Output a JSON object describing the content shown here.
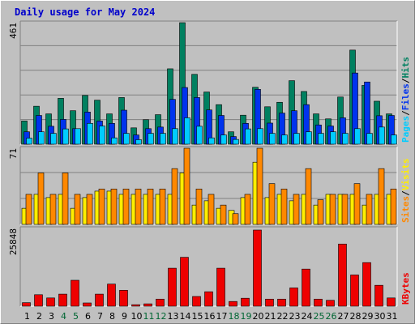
{
  "title": "Daily usage for May 2024",
  "colors": {
    "pages": "#00ccff",
    "files": "#0033ee",
    "hits": "#008060",
    "sites": "#ff8800",
    "visits": "#ffee00",
    "kbytes": "#ee0000",
    "weekday_label": "#000000",
    "weekend_label": "#006633"
  },
  "chart_data": [
    {
      "type": "bar",
      "name": "hits-files-pages",
      "ymax_label": "461",
      "ylim": [
        0,
        461
      ],
      "legend": [
        "Pages",
        "/",
        "Files",
        "/",
        "Hits"
      ],
      "categories": [
        "1",
        "2",
        "3",
        "4",
        "5",
        "6",
        "7",
        "8",
        "9",
        "10",
        "11",
        "12",
        "13",
        "14",
        "15",
        "16",
        "17",
        "18",
        "19",
        "20",
        "21",
        "22",
        "23",
        "24",
        "25",
        "26",
        "27",
        "28",
        "29",
        "30",
        "31"
      ],
      "series": [
        {
          "name": "Hits",
          "values": [
            88,
            144,
            115,
            174,
            127,
            185,
            167,
            115,
            177,
            62,
            93,
            112,
            286,
            461,
            265,
            198,
            150,
            47,
            110,
            216,
            142,
            159,
            241,
            200,
            115,
            96,
            179,
            357,
            223,
            163,
            115
          ]
        },
        {
          "name": "Files",
          "values": [
            47,
            109,
            68,
            94,
            59,
            122,
            88,
            79,
            129,
            35,
            59,
            65,
            170,
            215,
            177,
            130,
            109,
            29,
            79,
            208,
            80,
            118,
            127,
            150,
            73,
            69,
            100,
            270,
            236,
            108,
            109
          ]
        },
        {
          "name": "Pages",
          "values": [
            23,
            47,
            41,
            58,
            59,
            79,
            69,
            24,
            41,
            17,
            41,
            41,
            59,
            100,
            68,
            24,
            35,
            18,
            58,
            59,
            41,
            35,
            41,
            47,
            41,
            47,
            41,
            59,
            41,
            65,
            35
          ]
        }
      ],
      "grid": true
    },
    {
      "type": "bar",
      "name": "sites-visits",
      "ymax_label": "71",
      "ylim": [
        0,
        71
      ],
      "legend": [
        "Sites",
        "/",
        "Visits"
      ],
      "categories": [
        "1",
        "2",
        "3",
        "4",
        "5",
        "6",
        "7",
        "8",
        "9",
        "10",
        "11",
        "12",
        "13",
        "14",
        "15",
        "16",
        "17",
        "18",
        "19",
        "20",
        "21",
        "22",
        "23",
        "24",
        "25",
        "26",
        "27",
        "28",
        "29",
        "30",
        "31"
      ],
      "series": [
        {
          "name": "Sites",
          "values": [
            28,
            48,
            28,
            48,
            28,
            28,
            33,
            33,
            33,
            33,
            33,
            33,
            52,
            71,
            33,
            28,
            18,
            10,
            28,
            71,
            38,
            33,
            28,
            52,
            23,
            28,
            28,
            38,
            28,
            52,
            33
          ]
        },
        {
          "name": "Visits",
          "values": [
            15,
            28,
            25,
            28,
            15,
            25,
            31,
            31,
            28,
            28,
            28,
            28,
            28,
            48,
            18,
            22,
            15,
            13,
            25,
            58,
            25,
            28,
            22,
            28,
            18,
            28,
            28,
            28,
            18,
            28,
            28
          ]
        }
      ],
      "grid": true
    },
    {
      "type": "bar",
      "name": "kbytes",
      "ymax_label": "25848",
      "ylim": [
        0,
        25848
      ],
      "legend": [
        "KBytes"
      ],
      "categories": [
        "1",
        "2",
        "3",
        "4",
        "5",
        "6",
        "7",
        "8",
        "9",
        "10",
        "11",
        "12",
        "13",
        "14",
        "15",
        "16",
        "17",
        "18",
        "19",
        "20",
        "21",
        "22",
        "23",
        "24",
        "25",
        "26",
        "27",
        "28",
        "29",
        "30",
        "31"
      ],
      "series": [
        {
          "name": "KBytes",
          "values": [
            1200,
            3900,
            2800,
            4100,
            8800,
            1100,
            4100,
            7500,
            5400,
            500,
            800,
            2400,
            12900,
            16600,
            3300,
            4900,
            12900,
            1600,
            2700,
            25848,
            2400,
            2400,
            6200,
            12600,
            2400,
            2000,
            21100,
            10600,
            14800,
            7100,
            2800
          ]
        }
      ],
      "grid": true
    }
  ],
  "x_day_labels": [
    "1",
    "2",
    "3",
    "4",
    "5",
    "6",
    "7",
    "8",
    "9",
    "10",
    "11",
    "12",
    "13",
    "14",
    "15",
    "16",
    "17",
    "18",
    "19",
    "20",
    "21",
    "22",
    "23",
    "24",
    "25",
    "26",
    "27",
    "28",
    "29",
    "30",
    "31"
  ],
  "weekend_days": [
    "4",
    "5",
    "11",
    "12",
    "18",
    "19",
    "25",
    "26"
  ]
}
